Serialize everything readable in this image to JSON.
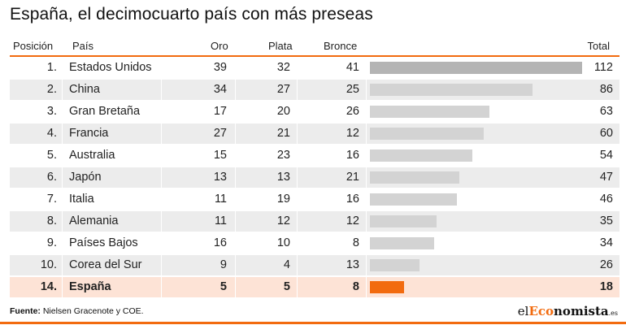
{
  "title": "España, el decimocuarto país con más preseas",
  "headers": {
    "position": "Posición",
    "country": "País",
    "gold": "Oro",
    "silver": "Plata",
    "bronze": "Bronce",
    "total": "Total"
  },
  "colors": {
    "accent": "#f26b0f",
    "bar_top": "#b4b4b4",
    "bar_default": "#d3d3d3",
    "highlight_row": "#fde3d6",
    "shaded_row": "#ececec"
  },
  "chart_data": {
    "type": "table",
    "columns": [
      "Posición",
      "País",
      "Oro",
      "Plata",
      "Bronce",
      "Total"
    ],
    "total_max": 112,
    "rows": [
      {
        "position": "1.",
        "country": "Estados Unidos",
        "gold": 39,
        "silver": 32,
        "bronze": 41,
        "total": 112
      },
      {
        "position": "2.",
        "country": "China",
        "gold": 34,
        "silver": 27,
        "bronze": 25,
        "total": 86
      },
      {
        "position": "3.",
        "country": "Gran Bretaña",
        "gold": 17,
        "silver": 20,
        "bronze": 26,
        "total": 63
      },
      {
        "position": "4.",
        "country": "Francia",
        "gold": 27,
        "silver": 21,
        "bronze": 12,
        "total": 60
      },
      {
        "position": "5.",
        "country": "Australia",
        "gold": 15,
        "silver": 23,
        "bronze": 16,
        "total": 54
      },
      {
        "position": "6.",
        "country": "Japón",
        "gold": 13,
        "silver": 13,
        "bronze": 21,
        "total": 47
      },
      {
        "position": "7.",
        "country": "Italia",
        "gold": 11,
        "silver": 19,
        "bronze": 16,
        "total": 46
      },
      {
        "position": "8.",
        "country": "Alemania",
        "gold": 11,
        "silver": 12,
        "bronze": 12,
        "total": 35
      },
      {
        "position": "9.",
        "country": "Países Bajos",
        "gold": 16,
        "silver": 10,
        "bronze": 8,
        "total": 34
      },
      {
        "position": "10.",
        "country": "Corea del Sur",
        "gold": 9,
        "silver": 4,
        "bronze": 13,
        "total": 26
      },
      {
        "position": "14.",
        "country": "España",
        "gold": 5,
        "silver": 5,
        "bronze": 8,
        "total": 18,
        "highlight": true
      }
    ]
  },
  "source": {
    "label": "Fuente:",
    "text": "Nielsen Gracenote y COE."
  },
  "logo": {
    "el": "el",
    "eco": "Eco",
    "nomista": "nomista",
    "es": ".es"
  }
}
